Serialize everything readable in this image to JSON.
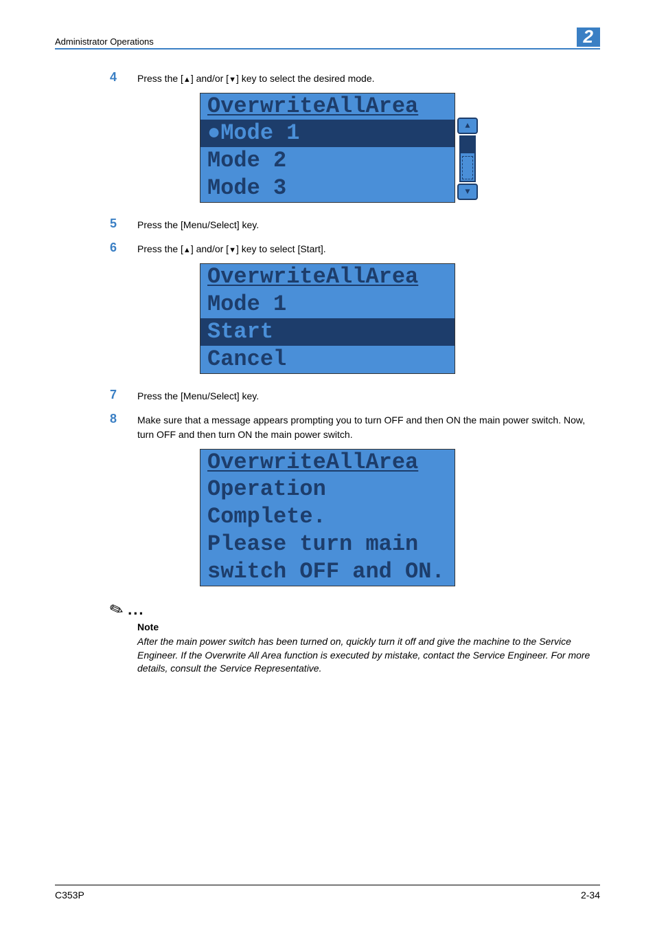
{
  "header": {
    "title": "Administrator Operations",
    "chapter": "2"
  },
  "steps": {
    "s4": {
      "num": "4",
      "text_a": "Press the [",
      "tri_up": "▲",
      "text_b": "] and/or [",
      "tri_down": "▼",
      "text_c": "] key to select the desired mode."
    },
    "s5": {
      "num": "5",
      "text": "Press the [Menu/Select] key."
    },
    "s6": {
      "num": "6",
      "text_a": "Press the [",
      "tri_up": "▲",
      "text_b": "] and/or [",
      "tri_down": "▼",
      "text_c": "] key to select [Start]."
    },
    "s7": {
      "num": "7",
      "text": "Press the [Menu/Select] key."
    },
    "s8": {
      "num": "8",
      "text": "Make sure that a message appears prompting you to turn OFF and then ON the main power switch. Now, turn OFF and then turn ON the main power switch."
    }
  },
  "lcd1": {
    "title": "OverwriteAllArea",
    "line1": "●Mode 1",
    "line2": " Mode 2",
    "line3": " Mode 3",
    "scroll_up": "▲",
    "scroll_down": "▼"
  },
  "lcd2": {
    "title": "OverwriteAllArea",
    "line1": " Mode 1",
    "line2": " Start",
    "line3": " Cancel"
  },
  "lcd3": {
    "title": "OverwriteAllArea",
    "line1": " Operation Complete.",
    "line2": " Please turn main",
    "line3": " switch OFF and ON."
  },
  "note": {
    "dots": "...",
    "label": "Note",
    "text": "After the main power switch has been turned on, quickly turn it off and give the machine to the Service Engineer. If the Overwrite All Area function is executed by mistake, contact the Service Engineer. For more details, consult the Service Representative."
  },
  "footer": {
    "left": "C353P",
    "right": "2-34"
  },
  "colors": {
    "accent": "#3a7fc4",
    "lcd_bg": "#4a8fd8",
    "lcd_dark": "#1d3d6b"
  }
}
